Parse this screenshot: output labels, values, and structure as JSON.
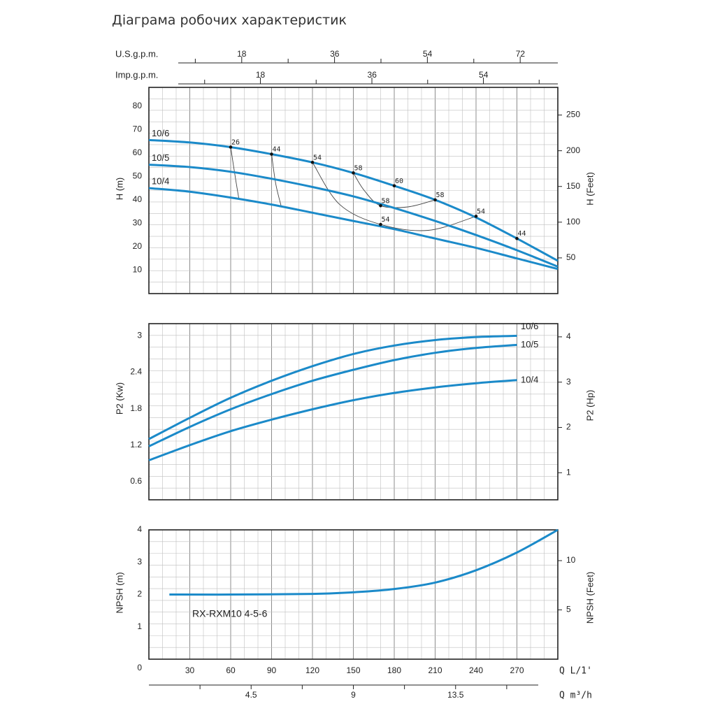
{
  "title": "Діаграма робочих характеристик",
  "colors": {
    "curve": "#1b8ac9",
    "grid_minor": "#bfbfbf",
    "grid_major": "#8c8c8c",
    "frame": "#222222",
    "text": "#222222"
  },
  "chart_data": [
    {
      "id": "head",
      "type": "line",
      "ylabel_left": "H (m)",
      "ylabel_right": "H (Feet)",
      "x_unit": "L/min",
      "xlim": [
        0,
        300
      ],
      "ylim": [
        0,
        88
      ],
      "yticks_left": [
        "10",
        "20",
        "30",
        "40",
        "50",
        "60",
        "70",
        "80"
      ],
      "yticks_right": [
        "50",
        "100",
        "150",
        "200",
        "250"
      ],
      "series": [
        {
          "name": "10/6",
          "x": [
            0,
            30,
            60,
            90,
            120,
            150,
            180,
            210,
            240,
            270,
            300
          ],
          "y": [
            65.5,
            64.5,
            62.5,
            59.5,
            56,
            51.5,
            46,
            40,
            32.5,
            23.5,
            14
          ]
        },
        {
          "name": "10/5",
          "x": [
            0,
            30,
            60,
            90,
            120,
            150,
            180,
            210,
            240,
            270,
            300
          ],
          "y": [
            55,
            54,
            52,
            49,
            45.5,
            41.5,
            36.5,
            31,
            25,
            18.5,
            11.5
          ]
        },
        {
          "name": "10/4",
          "x": [
            0,
            30,
            60,
            90,
            120,
            150,
            180,
            210,
            240,
            270,
            300
          ],
          "y": [
            45,
            43.5,
            41,
            38,
            34.5,
            31,
            27.5,
            23.5,
            19.5,
            15,
            10.5
          ]
        }
      ],
      "efficiency_curves": [
        {
          "label": "26",
          "x": [
            60,
            63,
            66
          ],
          "y": [
            62.5,
            51,
            40.5
          ]
        },
        {
          "label": "44",
          "x": [
            90,
            93,
            97
          ],
          "y": [
            59.5,
            47,
            37.5
          ]
        },
        {
          "label": "54",
          "x": [
            120,
            140,
            170,
            205,
            240
          ],
          "y": [
            56,
            38,
            29.5,
            27,
            33
          ]
        },
        {
          "label": "58",
          "x": [
            150,
            158,
            170,
            190,
            210
          ],
          "y": [
            51.5,
            44,
            37.5,
            37,
            40
          ]
        },
        {
          "label": "60",
          "x": [
            180
          ],
          "y": [
            46
          ]
        }
      ],
      "point_labels": [
        {
          "text": "26",
          "x": 60,
          "y": 62.5
        },
        {
          "text": "44",
          "x": 90,
          "y": 59.5
        },
        {
          "text": "54",
          "x": 120,
          "y": 56
        },
        {
          "text": "58",
          "x": 150,
          "y": 51.5
        },
        {
          "text": "60",
          "x": 180,
          "y": 46
        },
        {
          "text": "58",
          "x": 210,
          "y": 40
        },
        {
          "text": "58",
          "x": 170,
          "y": 37.5
        },
        {
          "text": "54",
          "x": 170,
          "y": 29.5
        },
        {
          "text": "54",
          "x": 240,
          "y": 33
        },
        {
          "text": "44",
          "x": 270,
          "y": 23.5
        }
      ],
      "top_axes": [
        {
          "label": "U.S.g.p.m.",
          "ticks": [
            "18",
            "36",
            "54",
            "72"
          ],
          "tick_lpm": [
            68.1,
            136.3,
            204.4,
            272.5
          ]
        },
        {
          "label": "Imp.g.p.m.",
          "ticks": [
            "18",
            "36",
            "54"
          ],
          "tick_lpm": [
            81.8,
            163.7,
            245.5
          ]
        }
      ]
    },
    {
      "id": "power",
      "type": "line",
      "ylabel_left": "P2 (Kw)",
      "ylabel_right": "P2 (Hp)",
      "xlim": [
        0,
        300
      ],
      "ylim": [
        0.3,
        3.2
      ],
      "yticks_left": [
        "0.6",
        "1.2",
        "1.8",
        "2.4",
        "3"
      ],
      "yticks_right": [
        "1",
        "2",
        "3",
        "4"
      ],
      "series": [
        {
          "name": "10/6",
          "x": [
            0,
            30,
            60,
            90,
            120,
            150,
            180,
            210,
            240,
            270
          ],
          "y": [
            1.3,
            1.65,
            1.98,
            2.26,
            2.5,
            2.7,
            2.84,
            2.93,
            2.98,
            3.0
          ]
        },
        {
          "name": "10/5",
          "x": [
            0,
            30,
            60,
            90,
            120,
            150,
            180,
            210,
            240,
            270
          ],
          "y": [
            1.18,
            1.5,
            1.79,
            2.04,
            2.26,
            2.44,
            2.6,
            2.72,
            2.8,
            2.85
          ]
        },
        {
          "name": "10/4",
          "x": [
            0,
            30,
            60,
            90,
            120,
            150,
            180,
            210,
            240,
            270
          ],
          "y": [
            0.95,
            1.2,
            1.43,
            1.62,
            1.79,
            1.94,
            2.06,
            2.15,
            2.22,
            2.27
          ]
        }
      ]
    },
    {
      "id": "npsh",
      "type": "line",
      "ylabel_left": "NPSH (m)",
      "ylabel_right": "NPSH (Feet)",
      "model_label": "RX-RXM10 4-5-6",
      "xlim": [
        0,
        300
      ],
      "ylim": [
        0,
        4
      ],
      "yticks_left": [
        "1",
        "2",
        "3",
        "4"
      ],
      "yticks_right": [
        "5",
        "10"
      ],
      "series": [
        {
          "name": "NPSH",
          "x": [
            15,
            60,
            120,
            150,
            180,
            210,
            240,
            270,
            300
          ],
          "y": [
            2.0,
            2.0,
            2.02,
            2.07,
            2.17,
            2.37,
            2.75,
            3.3,
            4.0
          ]
        }
      ],
      "bottom_axes": [
        {
          "label": "Q  L/1'",
          "zero": "0",
          "ticks": [
            "30",
            "60",
            "90",
            "120",
            "150",
            "180",
            "210",
            "240",
            "270"
          ]
        },
        {
          "label": "Q  m³/h",
          "ticks": [
            "4.5",
            "9",
            "13.5"
          ],
          "tick_lpm": [
            75,
            150,
            225
          ]
        }
      ]
    }
  ]
}
